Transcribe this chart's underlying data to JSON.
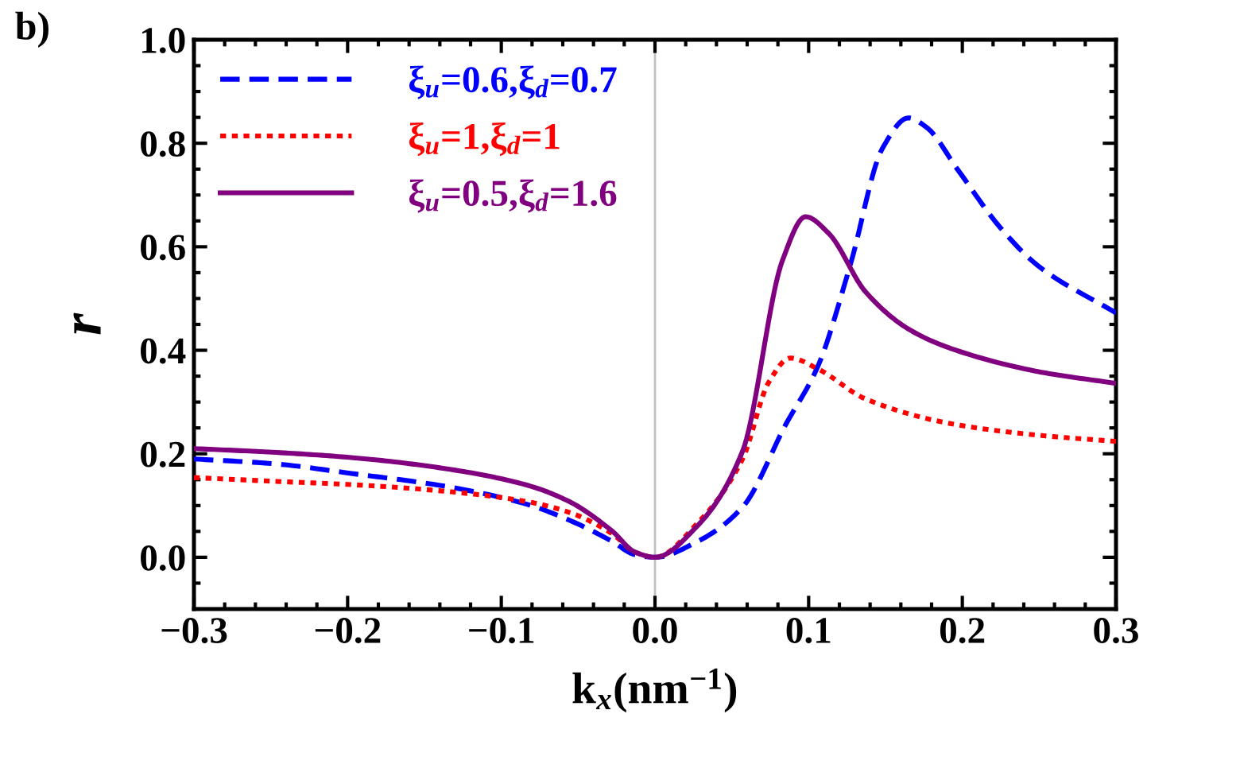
{
  "chart_data": {
    "type": "line",
    "title": "b)",
    "xlabel": "k$_{x}$(nm$^{−1}$)",
    "ylabel": "r",
    "xlim": [
      -0.3,
      0.3
    ],
    "xticks": [
      {
        "value": -0.3,
        "label": "−0.3"
      },
      {
        "value": -0.2,
        "label": "−0.2"
      },
      {
        "value": -0.1,
        "label": "−0.1"
      },
      {
        "value": 0.0,
        "label": "0.0"
      },
      {
        "value": 0.1,
        "label": "0.1"
      },
      {
        "value": 0.2,
        "label": "0.2"
      },
      {
        "value": 0.3,
        "label": "0.3"
      }
    ],
    "ylim": [
      -0.1,
      1.0
    ],
    "yticks": [
      {
        "value": 0.0,
        "label": "0.0"
      },
      {
        "value": 0.2,
        "label": "0.2"
      },
      {
        "value": 0.4,
        "label": "0.4"
      },
      {
        "value": 0.6,
        "label": "0.6"
      },
      {
        "value": 0.8,
        "label": "0.8"
      },
      {
        "value": 1.0,
        "label": "1.0"
      }
    ],
    "grid": false,
    "legend": "top left",
    "marker": "none",
    "ref_lines": [
      {
        "axis": "x",
        "value": 0,
        "color": "#c0c0c0"
      }
    ],
    "series": [
      {
        "name": "ξ$_{u}$=0.6,ξ$_{d}$=0.7",
        "color": "#0000ff",
        "line_style": "dashed",
        "x": [
          -0.3,
          -0.249,
          -0.195,
          -0.138,
          -0.084,
          -0.056,
          -0.028,
          -0.013,
          0,
          0.028,
          0.057,
          0.085,
          0.106,
          0.127,
          0.148,
          0.165,
          0.177,
          0.197,
          0.225,
          0.249,
          0.3
        ],
        "values": [
          0.19,
          0.181,
          0.161,
          0.138,
          0.103,
          0.072,
          0.031,
          0.005,
          0,
          0.031,
          0.097,
          0.256,
          0.369,
          0.564,
          0.79,
          0.849,
          0.83,
          0.749,
          0.636,
          0.564,
          0.472
        ]
      },
      {
        "name": "ξ$_{u}$=1,ξ$_{d}$=1",
        "color": "#ff0000",
        "line_style": "dotted",
        "x": [
          -0.3,
          -0.249,
          -0.195,
          -0.138,
          -0.084,
          -0.056,
          -0.028,
          -0.013,
          0,
          0.028,
          0.057,
          0.074,
          0.088,
          0.106,
          0.137,
          0.193,
          0.249,
          0.3
        ],
        "values": [
          0.154,
          0.147,
          0.14,
          0.128,
          0.108,
          0.087,
          0.046,
          0.01,
          0,
          0.067,
          0.19,
          0.338,
          0.385,
          0.364,
          0.306,
          0.258,
          0.236,
          0.224
        ]
      },
      {
        "name": "ξ$_{u}$=0.5,ξ$_{d}$=1.6",
        "color": "#800080",
        "line_style": "solid",
        "x": [
          -0.3,
          -0.249,
          -0.195,
          -0.138,
          -0.084,
          -0.056,
          -0.028,
          -0.013,
          0,
          0.028,
          0.057,
          0.083,
          0.098,
          0.113,
          0.137,
          0.165,
          0.193,
          0.249,
          0.3
        ],
        "values": [
          0.21,
          0.203,
          0.192,
          0.172,
          0.14,
          0.108,
          0.051,
          0.01,
          0,
          0.062,
          0.205,
          0.574,
          0.658,
          0.626,
          0.513,
          0.441,
          0.403,
          0.359,
          0.336
        ]
      }
    ]
  }
}
